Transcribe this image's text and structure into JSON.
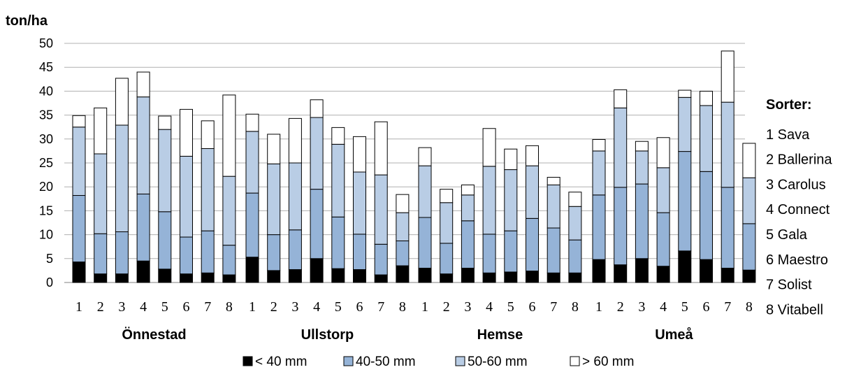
{
  "chart_data": {
    "type": "bar",
    "stacked": true,
    "ylabel": "ton/ha",
    "ylim": [
      0,
      50
    ],
    "yticks": [
      "0",
      "5",
      "10",
      "15",
      "20",
      "25",
      "30",
      "35",
      "40",
      "45",
      "50"
    ],
    "grid": true,
    "legend_position": "bottom",
    "series_colors": [
      "#000000",
      "#95B3D7",
      "#B9CDE5",
      "#FFFFFF"
    ],
    "groups": [
      {
        "name": "Önnestad",
        "categories": [
          "1",
          "2",
          "3",
          "4",
          "5",
          "6",
          "7",
          "8"
        ],
        "stacks": [
          [
            4.3,
            13.9,
            14.3,
            2.4
          ],
          [
            1.8,
            8.4,
            16.7,
            9.6
          ],
          [
            1.8,
            8.8,
            22.3,
            9.8
          ],
          [
            4.5,
            14.0,
            20.3,
            5.2
          ],
          [
            2.8,
            12.0,
            17.2,
            2.8
          ],
          [
            1.8,
            7.7,
            16.9,
            9.8
          ],
          [
            2.0,
            8.8,
            17.2,
            5.8
          ],
          [
            1.6,
            6.2,
            14.4,
            17.0
          ]
        ]
      },
      {
        "name": "Ullstorp",
        "categories": [
          "1",
          "2",
          "3",
          "4",
          "5",
          "6",
          "7",
          "8"
        ],
        "stacks": [
          [
            5.3,
            13.4,
            12.9,
            3.6
          ],
          [
            2.5,
            7.5,
            14.8,
            6.2
          ],
          [
            2.7,
            8.3,
            14.0,
            9.3
          ],
          [
            5.0,
            14.5,
            15.0,
            3.7
          ],
          [
            2.9,
            10.8,
            15.2,
            3.5
          ],
          [
            2.7,
            7.4,
            13.0,
            7.4
          ],
          [
            1.6,
            6.4,
            14.5,
            11.1
          ],
          [
            3.5,
            5.2,
            5.9,
            3.8
          ]
        ]
      },
      {
        "name": "Hemse",
        "categories": [
          "1",
          "2",
          "3",
          "4",
          "5",
          "6",
          "7",
          "8"
        ],
        "stacks": [
          [
            3.0,
            10.6,
            10.8,
            3.8
          ],
          [
            1.8,
            6.4,
            8.5,
            2.8
          ],
          [
            3.0,
            9.9,
            5.4,
            2.1
          ],
          [
            2.0,
            8.1,
            14.2,
            7.9
          ],
          [
            2.2,
            8.6,
            12.8,
            4.3
          ],
          [
            2.4,
            11.0,
            11.0,
            4.2
          ],
          [
            2.0,
            9.4,
            9.0,
            1.6
          ],
          [
            2.0,
            6.9,
            7.0,
            3.0
          ]
        ]
      },
      {
        "name": "Umeå",
        "categories": [
          "1",
          "2",
          "3",
          "4",
          "5",
          "6",
          "7",
          "8"
        ],
        "stacks": [
          [
            4.8,
            13.5,
            9.2,
            2.4
          ],
          [
            3.7,
            16.2,
            16.6,
            3.8
          ],
          [
            5.0,
            15.6,
            6.9,
            2.0
          ],
          [
            3.4,
            11.2,
            9.4,
            6.3
          ],
          [
            6.6,
            20.8,
            11.3,
            1.5
          ],
          [
            4.8,
            18.4,
            13.8,
            3.0
          ],
          [
            3.0,
            16.9,
            17.8,
            10.7
          ],
          [
            2.6,
            9.7,
            9.6,
            7.2
          ]
        ]
      }
    ],
    "legend": [
      {
        "label": "< 40 mm",
        "color": "#000000"
      },
      {
        "label": "40-50 mm",
        "color": "#95B3D7"
      },
      {
        "label": "50-60 mm",
        "color": "#B9CDE5"
      },
      {
        "label": "> 60 mm",
        "color": "#FFFFFF"
      }
    ],
    "side_legend": {
      "title": "Sorter:",
      "items": [
        "1 Sava",
        "2 Ballerina",
        "3 Carolus",
        "4 Connect",
        "5 Gala",
        "6 Maestro",
        "7 Solist",
        "8 Vitabell"
      ]
    }
  }
}
